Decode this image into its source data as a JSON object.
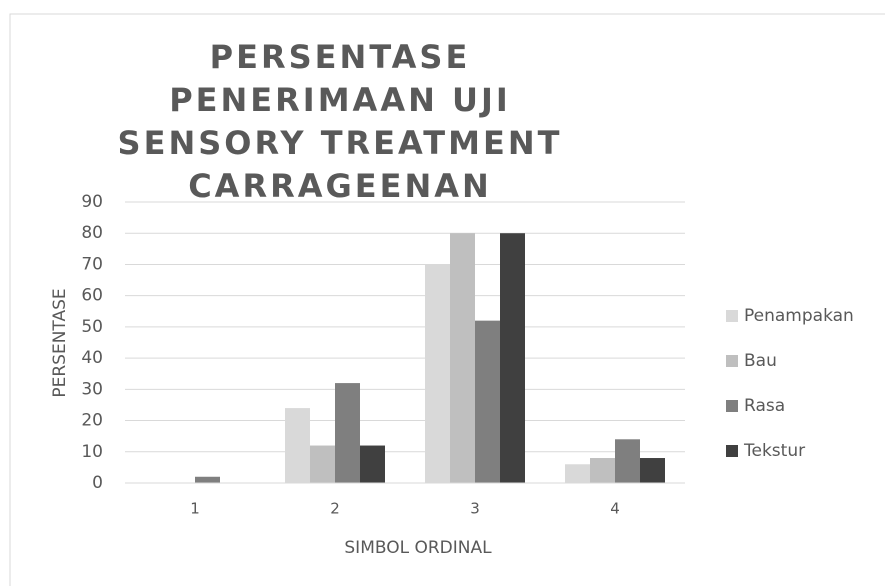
{
  "chart_data": {
    "type": "bar",
    "title": "PERSENTASE PENERIMAAN UJI SENSORY TREATMENT CARRAGEENAN",
    "xlabel": "SIMBOL ORDINAL",
    "ylabel": "PERSENTASE",
    "categories": [
      "1",
      "2",
      "3",
      "4"
    ],
    "series": [
      {
        "name": "Penampakan",
        "color": "#d9d9d9",
        "values": [
          0,
          24,
          70,
          6
        ]
      },
      {
        "name": "Bau",
        "color": "#bfbfbf",
        "values": [
          0,
          12,
          80,
          8
        ]
      },
      {
        "name": "Rasa",
        "color": "#7f7f7f",
        "values": [
          2,
          32,
          52,
          14
        ]
      },
      {
        "name": "Tekstur",
        "color": "#404040",
        "values": [
          0,
          12,
          80,
          8
        ]
      }
    ],
    "ylim": [
      0,
      90
    ],
    "yticks": [
      0,
      10,
      20,
      30,
      40,
      50,
      60,
      70,
      80,
      90
    ],
    "grid": true,
    "legend": "right"
  }
}
